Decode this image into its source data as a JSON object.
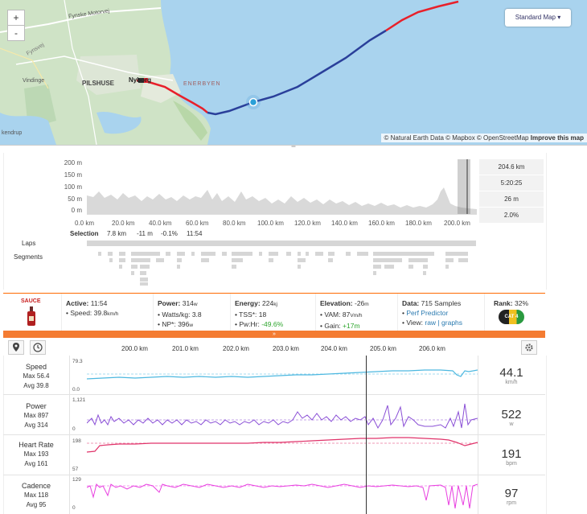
{
  "map": {
    "zoom_in": "+",
    "zoom_out": "-",
    "style_button": "Standard Map ▾",
    "attribution_prefix": "© Natural Earth Data © Mapbox © OpenStreetMap",
    "attribution_improve": "Improve this map",
    "places": [
      "Fynske Motorvej",
      "Vindinge",
      "PILSHUSE",
      "Nyborg",
      "kendrup",
      "Fynsvej",
      "ENERBYEN"
    ]
  },
  "elevation": {
    "y_ticks": [
      "200 m",
      "150 m",
      "100 m",
      "50 m",
      "0 m"
    ],
    "x_ticks": [
      "0.0 km",
      "20.0 km",
      "40.0 km",
      "60.0 km",
      "80.0 km",
      "100.0 km",
      "120.0 km",
      "140.0 km",
      "160.0 km",
      "180.0 km",
      "200.0 km"
    ],
    "selection_label": "Selection",
    "selection_values": [
      "7.8 km",
      "-11 m",
      "-0.1%",
      "11:54"
    ],
    "laps_label": "Laps",
    "segments_label": "Segments",
    "stats": [
      "204.6 km",
      "5:20:25",
      "26 m",
      "2.0%"
    ]
  },
  "summary": {
    "logo_text": "SAUCE",
    "active": {
      "title": "Active:",
      "value": "11:54",
      "line1_label": "• Speed:",
      "line1_value": "39.8",
      "line1_unit": "km/h"
    },
    "power": {
      "title": "Power:",
      "value": "314",
      "unit": "w",
      "line1_label": "• Watts/kg:",
      "line1_value": "3.8",
      "line2_label": "• NP*:",
      "line2_value": "396",
      "line2_unit": "w"
    },
    "energy": {
      "title": "Energy:",
      "value": "224",
      "unit": "kj",
      "line1_label": "• TSS*:",
      "line1_value": "18",
      "line2_label": "• Pw:Hr:",
      "line2_value": "-49.6%"
    },
    "elevation": {
      "title": "Elevation:",
      "value": "-26",
      "unit": "m",
      "line1_label": "• VAM:",
      "line1_value": "87",
      "line1_unit": "Vm/h",
      "line2_label": "• Gain:",
      "line2_value": "+17m"
    },
    "data": {
      "title": "Data:",
      "value": "715 Samples",
      "line1_label": "•",
      "line1_link": "Perf Predictor",
      "line2_label": "• View:",
      "line2_link1": "raw",
      "line2_sep": "|",
      "line2_link2": "graphs"
    },
    "rank": {
      "title": "Rank:",
      "value": "32%",
      "badge": "CAT 4"
    },
    "collapse": "»"
  },
  "streams": {
    "x_ticks": [
      "200.0 km",
      "201.0 km",
      "202.0 km",
      "203.0 km",
      "204.0 km",
      "205.0 km",
      "206.0 km"
    ],
    "rows": [
      {
        "name": "Speed",
        "max": "Max 56.4",
        "avg": "Avg 39.8",
        "axis_top": "79.3",
        "axis_bottom": "0.0",
        "value": "44.1",
        "unit": "km/h",
        "color": "#4db8e0"
      },
      {
        "name": "Power",
        "max": "Max 897",
        "avg": "Avg 314",
        "axis_top": "1,121",
        "axis_bottom": "0",
        "value": "522",
        "unit": "w",
        "color": "#8a4fd6"
      },
      {
        "name": "Heart Rate",
        "max": "Max 193",
        "avg": "Avg 161",
        "axis_top": "198",
        "axis_bottom": "57",
        "value": "191",
        "unit": "bpm",
        "color": "#e0336a"
      },
      {
        "name": "Cadence",
        "max": "Max 118",
        "avg": "Avg 95",
        "axis_top": "129",
        "axis_bottom": "0",
        "value": "97",
        "unit": "rpm",
        "color": "#e83fe0"
      }
    ]
  },
  "colors": {
    "accent": "#f47c32",
    "route_red": "#e8202a",
    "route_blue": "#2a3f9a",
    "link": "#2a7ab0"
  }
}
